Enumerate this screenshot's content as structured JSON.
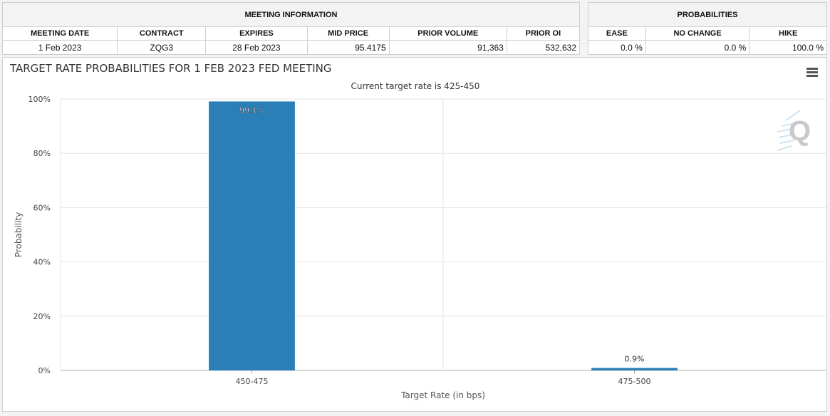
{
  "meeting_info": {
    "title": "MEETING INFORMATION",
    "headers": [
      "MEETING DATE",
      "CONTRACT",
      "EXPIRES",
      "MID PRICE",
      "PRIOR VOLUME",
      "PRIOR OI"
    ],
    "row": [
      "1 Feb 2023",
      "ZQG3",
      "28 Feb 2023",
      "95.4175",
      "91,363",
      "532,632"
    ]
  },
  "probabilities": {
    "title": "PROBABILITIES",
    "headers": [
      "EASE",
      "NO CHANGE",
      "HIKE"
    ],
    "row": [
      "0.0 %",
      "0.0 %",
      "100.0 %"
    ]
  },
  "chart_data": {
    "type": "bar",
    "title": "TARGET RATE PROBABILITIES FOR 1 FEB 2023 FED MEETING",
    "subtitle": "Current target rate is 425-450",
    "xlabel": "Target Rate (in bps)",
    "ylabel": "Probability",
    "categories": [
      "450-475",
      "475-500"
    ],
    "values": [
      99.1,
      0.9
    ],
    "data_labels": [
      "99.1%",
      "0.9%"
    ],
    "ylim": [
      0,
      100
    ],
    "yticks": [
      0,
      20,
      40,
      60,
      80,
      100
    ],
    "ytick_labels": [
      "0%",
      "20%",
      "40%",
      "60%",
      "80%",
      "100%"
    ],
    "bar_color": "#2b7fb8",
    "grid": true,
    "legend": "none"
  },
  "ui": {
    "menu_icon": "hamburger-menu-icon",
    "logo_text": "Q"
  }
}
